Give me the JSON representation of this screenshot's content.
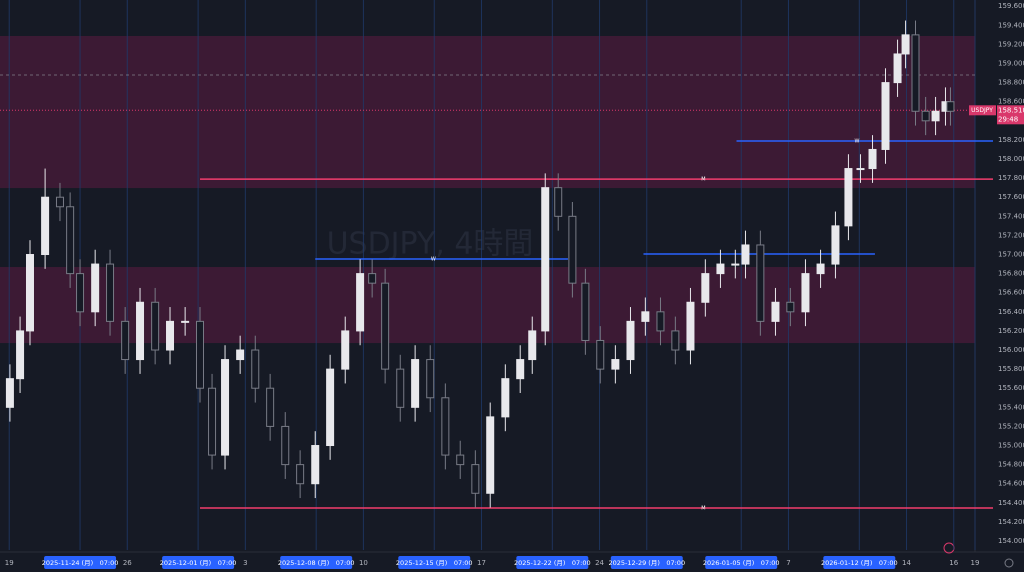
{
  "chart_data": {
    "type": "candlestick",
    "symbol": "USDJPY",
    "watermark": "USDJPY, 4時間",
    "x": [
      -2.97,
      -2.54,
      -2.12,
      -1.48,
      -0.85,
      -0.42,
      0,
      0.64,
      1.27,
      1.91,
      2.54,
      3.18,
      3.81,
      4.45,
      5.08,
      5.59,
      6.14,
      6.78,
      7.42,
      8.05,
      8.69,
      9.32,
      9.96,
      10.59,
      11.23,
      11.86,
      12.37,
      12.92,
      13.56,
      14.19,
      14.83,
      15.47,
      16.1,
      16.74,
      17.37,
      18.01,
      18.64,
      19.15,
      19.7,
      20.25,
      20.85,
      21.4,
      22.03,
      22.67,
      23.31,
      23.94,
      24.58,
      25.21,
      25.85,
      26.48,
      27.12,
      27.75,
      28.18,
      28.81,
      29.45,
      30.08,
      30.72,
      31.36,
      31.99,
      32.54,
      33.05,
      33.56,
      34.11,
      34.62,
      34.96,
      35.38,
      35.81,
      36.23,
      36.65,
      36.86
    ],
    "open": [
      155.4,
      155.7,
      156.2,
      157.0,
      157.6,
      157.5,
      156.8,
      156.4,
      156.9,
      156.3,
      155.9,
      156.5,
      156.0,
      156.3,
      156.3,
      155.6,
      154.9,
      155.9,
      156.0,
      155.6,
      155.2,
      154.8,
      154.6,
      155.0,
      155.8,
      156.2,
      156.8,
      156.7,
      155.8,
      155.4,
      155.9,
      155.5,
      154.9,
      154.8,
      154.5,
      155.3,
      155.7,
      155.9,
      156.2,
      157.7,
      157.4,
      156.7,
      156.1,
      155.8,
      155.9,
      156.3,
      156.4,
      156.2,
      156.0,
      156.5,
      156.8,
      156.9,
      156.9,
      157.1,
      156.3,
      156.5,
      156.4,
      156.8,
      156.9,
      157.3,
      157.9,
      157.9,
      158.1,
      158.8,
      159.1,
      159.3,
      158.5,
      158.4,
      158.5,
      158.6
    ],
    "high": [
      155.85,
      156.35,
      157.15,
      157.9,
      157.75,
      157.65,
      156.95,
      157.05,
      157.05,
      156.45,
      156.65,
      156.65,
      156.45,
      156.45,
      156.45,
      155.75,
      156.05,
      156.15,
      156.15,
      155.75,
      155.35,
      154.95,
      155.15,
      155.95,
      156.35,
      156.95,
      156.95,
      156.85,
      155.95,
      156.05,
      156.05,
      155.65,
      155.05,
      154.95,
      155.45,
      155.85,
      156.05,
      156.35,
      157.85,
      157.85,
      157.55,
      156.85,
      156.25,
      156.05,
      156.45,
      156.55,
      156.55,
      156.35,
      156.65,
      156.95,
      157.05,
      157.05,
      157.25,
      157.25,
      156.65,
      156.65,
      156.95,
      157.05,
      157.45,
      158.05,
      158.05,
      158.25,
      158.95,
      159.25,
      159.45,
      159.45,
      158.65,
      158.65,
      158.75,
      158.75
    ],
    "low": [
      155.25,
      155.55,
      156.05,
      156.85,
      157.35,
      156.65,
      156.25,
      156.25,
      156.15,
      155.75,
      155.75,
      155.85,
      155.85,
      156.15,
      155.45,
      154.75,
      154.75,
      155.75,
      155.45,
      155.05,
      154.65,
      154.45,
      154.45,
      154.85,
      155.65,
      156.05,
      156.55,
      155.65,
      155.25,
      155.25,
      155.35,
      154.75,
      154.65,
      154.35,
      154.35,
      155.15,
      155.55,
      155.75,
      156.05,
      157.25,
      156.55,
      155.95,
      155.65,
      155.65,
      155.75,
      156.15,
      156.05,
      155.85,
      155.85,
      156.35,
      156.65,
      156.75,
      156.75,
      156.15,
      156.15,
      156.25,
      156.25,
      156.65,
      156.75,
      157.15,
      157.75,
      157.75,
      157.95,
      158.65,
      158.95,
      158.35,
      158.25,
      158.25,
      158.35,
      158.35
    ],
    "close": [
      155.7,
      156.2,
      157.0,
      157.6,
      157.5,
      156.8,
      156.4,
      156.9,
      156.3,
      155.9,
      156.5,
      156.0,
      156.3,
      156.3,
      155.6,
      154.9,
      155.9,
      156.0,
      155.6,
      155.2,
      154.8,
      154.6,
      155.0,
      155.8,
      156.2,
      156.8,
      156.7,
      155.8,
      155.4,
      155.9,
      155.5,
      154.9,
      154.8,
      154.5,
      155.3,
      155.7,
      155.9,
      156.2,
      157.7,
      157.4,
      156.7,
      156.1,
      155.8,
      155.9,
      156.3,
      156.4,
      156.2,
      156.0,
      156.5,
      156.8,
      156.9,
      156.9,
      157.1,
      156.3,
      156.5,
      156.4,
      156.8,
      156.9,
      157.3,
      157.9,
      157.9,
      158.1,
      158.8,
      159.1,
      159.3,
      158.5,
      158.4,
      158.5,
      158.6,
      158.5
    ],
    "up_color": "#e8e8ec",
    "down_color": "#787b86",
    "xlim": [
      -3.39,
      37.9
    ],
    "xticks": [
      {
        "value": -3,
        "label": "19"
      },
      {
        "value": 0,
        "label": "2025-11-24 (月)　07:00"
      },
      {
        "value": 2,
        "label": "26"
      },
      {
        "value": 5,
        "label": "2025-12-01 (月)　07:00"
      },
      {
        "value": 7,
        "label": "3"
      },
      {
        "value": 10,
        "label": "2025-12-08 (月)　07:00"
      },
      {
        "value": 12,
        "label": "10"
      },
      {
        "value": 15,
        "label": "2025-12-15 (月)　07:00"
      },
      {
        "value": 17,
        "label": "17"
      },
      {
        "value": 20,
        "label": "2025-12-22 (月)　07:00"
      },
      {
        "value": 22,
        "label": "24"
      },
      {
        "value": 24,
        "label": "2025-12-29 (月)　07:00"
      },
      {
        "value": 28,
        "label": "2026-01-05 (月)　07:00"
      },
      {
        "value": 30,
        "label": "7"
      },
      {
        "value": 33,
        "label": "2026-01-12 (月)　07:00"
      },
      {
        "value": 35,
        "label": "14"
      },
      {
        "value": 37,
        "label": "16"
      },
      {
        "value": 37.9,
        "label": "19"
      }
    ],
    "ylim": [
      153.906,
      159.665
    ],
    "yticks": [
      {
        "value": 154,
        "label": "154.000"
      },
      {
        "value": 154.2,
        "label": "154.200"
      },
      {
        "value": 154.4,
        "label": "154.400"
      },
      {
        "value": 154.6,
        "label": "154.600"
      },
      {
        "value": 154.8,
        "label": "154.800"
      },
      {
        "value": 155,
        "label": "155.000"
      },
      {
        "value": 155.2,
        "label": "155.200"
      },
      {
        "value": 155.4,
        "label": "155.400"
      },
      {
        "value": 155.6,
        "label": "155.600"
      },
      {
        "value": 155.8,
        "label": "155.800"
      },
      {
        "value": 156,
        "label": "156.000"
      },
      {
        "value": 156.2,
        "label": "156.200"
      },
      {
        "value": 156.4,
        "label": "156.400"
      },
      {
        "value": 156.6,
        "label": "156.600"
      },
      {
        "value": 156.8,
        "label": "156.800"
      },
      {
        "value": 157,
        "label": "157.000"
      },
      {
        "value": 157.2,
        "label": "157.200"
      },
      {
        "value": 157.4,
        "label": "157.400"
      },
      {
        "value": 157.6,
        "label": "157.600"
      },
      {
        "value": 157.8,
        "label": "157.800"
      },
      {
        "value": 158,
        "label": "158.000"
      },
      {
        "value": 158.2,
        "label": "158.200"
      },
      {
        "value": 158.4,
        "label": "158.400"
      },
      {
        "value": 158.6,
        "label": "158.600"
      },
      {
        "value": 158.8,
        "label": "158.800"
      },
      {
        "value": 159,
        "label": "159.000"
      },
      {
        "value": 159.2,
        "label": "159.200"
      },
      {
        "value": 159.4,
        "label": "159.400"
      },
      {
        "value": 159.6,
        "label": "159.600"
      }
    ],
    "zones": [
      {
        "low": 157.696,
        "high": 159.288
      },
      {
        "low": 156.073,
        "high": 156.869
      }
    ],
    "zone_color": "#4a1b3a",
    "levels": [
      {
        "value": 157.79,
        "start": 5.08,
        "end": 37.9,
        "color": "#f23d6d",
        "label": "M",
        "label_at": 26.4
      },
      {
        "value": 154.346,
        "start": 5.08,
        "end": 37.9,
        "color": "#f23d6d",
        "label": "M",
        "label_at": 26.4
      },
      {
        "value": 156.953,
        "start": 9.96,
        "end": 19.9,
        "color": "#2962ff",
        "label": "W",
        "label_at": 14.96
      },
      {
        "value": 157.005,
        "start": 23.86,
        "end": 32.9,
        "color": "#2962ff"
      },
      {
        "value": 158.188,
        "start": 27.8,
        "end": 37.9,
        "color": "#2962ff",
        "label": "W",
        "label_at": 32.9
      }
    ],
    "reference_line": 158.88,
    "last_price": {
      "value": 158.51,
      "label": "158.510"
    },
    "countdown": "29:48"
  }
}
